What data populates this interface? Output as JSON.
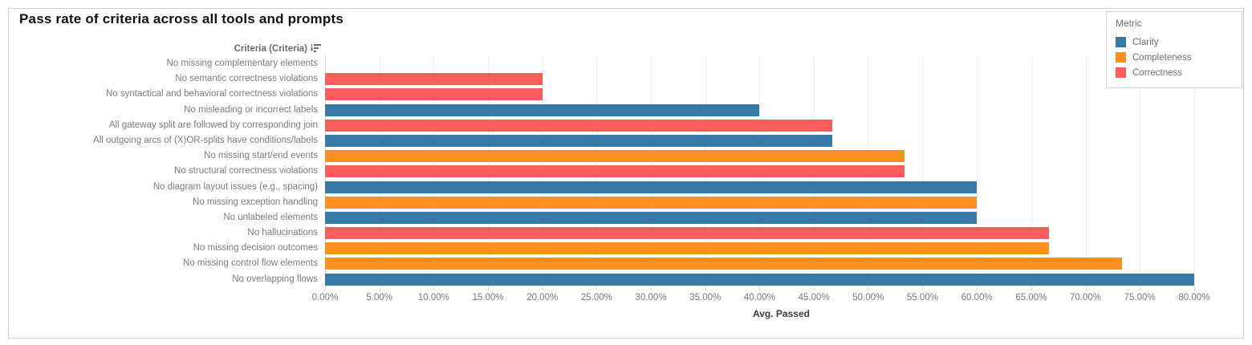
{
  "title": "Pass rate of criteria across all tools and prompts",
  "criteria_header": "Criteria (Criteria)",
  "axis": {
    "title": "Avg. Passed",
    "ticks": [
      "0.00%",
      "5.00%",
      "10.00%",
      "15.00%",
      "20.00%",
      "25.00%",
      "30.00%",
      "35.00%",
      "40.00%",
      "45.00%",
      "50.00%",
      "55.00%",
      "60.00%",
      "65.00%",
      "70.00%",
      "75.00%",
      "80.00%"
    ],
    "tick_step_percent": 5,
    "axis_display_max_percent": 84
  },
  "legend": {
    "title": "Metric",
    "position": "top-right",
    "items": [
      {
        "label": "Clarity",
        "color": "#3679A5"
      },
      {
        "label": "Completeness",
        "color": "#FA9120"
      },
      {
        "label": "Correctness",
        "color": "#FB5C5C"
      }
    ]
  },
  "chart_data": {
    "type": "bar",
    "orientation": "horizontal",
    "title": "Pass rate of criteria across all tools and prompts",
    "xlabel": "Avg. Passed",
    "ylabel": "Criteria (Criteria)",
    "xlim": [
      0,
      84
    ],
    "x_ticks_percent": [
      0,
      5,
      10,
      15,
      20,
      25,
      30,
      35,
      40,
      45,
      50,
      55,
      60,
      65,
      70,
      75,
      80
    ],
    "grid": true,
    "legend_position": "top-right",
    "rows": [
      {
        "label": "No missing complementary elements",
        "metric": null,
        "value": 0
      },
      {
        "label": "No semantic correctness violations",
        "metric": "Correctness",
        "value": 20
      },
      {
        "label": "No syntactical and behavioral correctness violations",
        "metric": "Correctness",
        "value": 20
      },
      {
        "label": "No misleading or incorrect labels",
        "metric": "Clarity",
        "value": 40
      },
      {
        "label": "All gateway split are followed by corresponding join",
        "metric": "Correctness",
        "value": 46.67
      },
      {
        "label": "All outgoing arcs of (X)OR-splits have conditions/labels",
        "metric": "Clarity",
        "value": 46.67
      },
      {
        "label": "No missing start/end events",
        "metric": "Completeness",
        "value": 53.33
      },
      {
        "label": "No structural correctness violations",
        "metric": "Correctness",
        "value": 53.33
      },
      {
        "label": "No diagram layout issues (e.g., spacing)",
        "metric": "Clarity",
        "value": 60
      },
      {
        "label": "No missing exception handling",
        "metric": "Completeness",
        "value": 60
      },
      {
        "label": "No unlabeled elements",
        "metric": "Clarity",
        "value": 60
      },
      {
        "label": "No hallucinations",
        "metric": "Correctness",
        "value": 66.67
      },
      {
        "label": "No missing decision outcomes",
        "metric": "Completeness",
        "value": 66.67
      },
      {
        "label": "No missing control flow elements",
        "metric": "Completeness",
        "value": 73.33
      },
      {
        "label": "No overlapping flows",
        "metric": "Clarity",
        "value": 80
      }
    ]
  },
  "colors": {
    "gridline": "#EFEFEF",
    "axis_line": "#DCDCDC",
    "frame_border": "#D2D2D2",
    "row_label_text": "#7D7D7D",
    "header_text": "#6B6B6B",
    "tick_label_text": "#7A7A7A",
    "axis_title_text": "#3C3C3C",
    "title_text": "#111111"
  }
}
